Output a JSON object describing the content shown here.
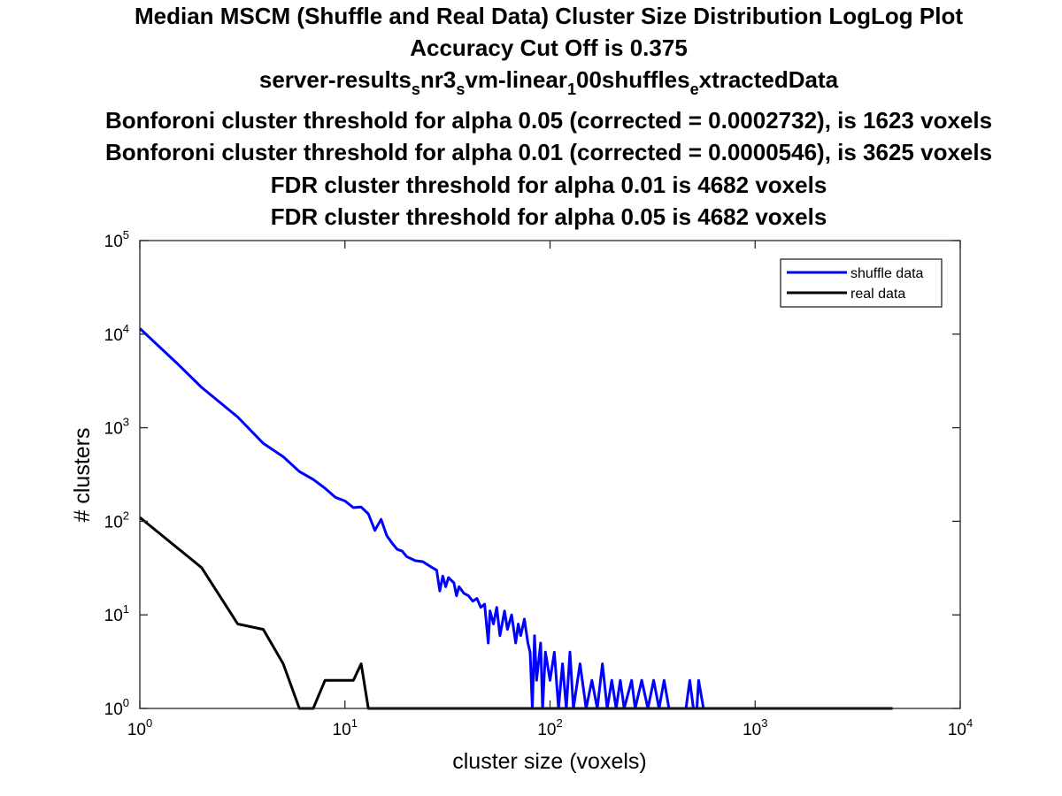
{
  "chart_data": {
    "type": "line",
    "title_lines": [
      "Median MSCM (Shuffle and Real Data) Cluster Size Distribution LogLog Plot",
      "Accuracy Cut Off is 0.375",
      "Bonforoni cluster threshold for alpha 0.05 (corrected = 0.0002732), is 1623 voxels",
      "Bonforoni cluster threshold for alpha 0.01 (corrected = 0.0000546), is 3625 voxels",
      "FDR cluster threshold for alpha 0.01 is 4682 voxels",
      "FDR cluster threshold for alpha 0.05 is 4682 voxels"
    ],
    "title_subscript_line": {
      "parts": [
        {
          "text": "server-results",
          "sub": false
        },
        {
          "text": "s",
          "sub": true
        },
        {
          "text": "nr3",
          "sub": false
        },
        {
          "text": "s",
          "sub": true
        },
        {
          "text": "vm-linear",
          "sub": false
        },
        {
          "text": "1",
          "sub": true
        },
        {
          "text": "00shuffles",
          "sub": false
        },
        {
          "text": "e",
          "sub": true
        },
        {
          "text": "xtractedData",
          "sub": false
        }
      ]
    },
    "xlabel": "cluster size (voxels)",
    "ylabel": "# clusters",
    "xscale": "log",
    "yscale": "log",
    "xlim": [
      1,
      10000
    ],
    "ylim": [
      1,
      100000
    ],
    "x_ticks": [
      {
        "base": "10",
        "exp": "0",
        "value": 1
      },
      {
        "base": "10",
        "exp": "1",
        "value": 10
      },
      {
        "base": "10",
        "exp": "2",
        "value": 100
      },
      {
        "base": "10",
        "exp": "3",
        "value": 1000
      },
      {
        "base": "10",
        "exp": "4",
        "value": 10000
      }
    ],
    "y_ticks": [
      {
        "base": "10",
        "exp": "0",
        "value": 1
      },
      {
        "base": "10",
        "exp": "1",
        "value": 10
      },
      {
        "base": "10",
        "exp": "2",
        "value": 100
      },
      {
        "base": "10",
        "exp": "3",
        "value": 1000
      },
      {
        "base": "10",
        "exp": "4",
        "value": 10000
      },
      {
        "base": "10",
        "exp": "5",
        "value": 100000
      }
    ],
    "grid": false,
    "legend_position": "top-right",
    "series": [
      {
        "name": "shuffle data",
        "color": "#0000ff",
        "points": [
          [
            1,
            11500
          ],
          [
            1.5,
            5000
          ],
          [
            2,
            2700
          ],
          [
            3,
            1300
          ],
          [
            4,
            680
          ],
          [
            5,
            490
          ],
          [
            6,
            340
          ],
          [
            7,
            280
          ],
          [
            8,
            225
          ],
          [
            9,
            180
          ],
          [
            10,
            165
          ],
          [
            11,
            140
          ],
          [
            12,
            142
          ],
          [
            13,
            120
          ],
          [
            14,
            80
          ],
          [
            15,
            105
          ],
          [
            16,
            70
          ],
          [
            17,
            58
          ],
          [
            18,
            50
          ],
          [
            19,
            48
          ],
          [
            20,
            42
          ],
          [
            22,
            38
          ],
          [
            24,
            37
          ],
          [
            26,
            33
          ],
          [
            28,
            30
          ],
          [
            29,
            18
          ],
          [
            30,
            26
          ],
          [
            31,
            20
          ],
          [
            32,
            25
          ],
          [
            34,
            22
          ],
          [
            35,
            16
          ],
          [
            36,
            20
          ],
          [
            38,
            17
          ],
          [
            40,
            16
          ],
          [
            42,
            14
          ],
          [
            44,
            15
          ],
          [
            46,
            12
          ],
          [
            48,
            13
          ],
          [
            50,
            5
          ],
          [
            51,
            11
          ],
          [
            53,
            8
          ],
          [
            55,
            12
          ],
          [
            57,
            6
          ],
          [
            60,
            11
          ],
          [
            62,
            7
          ],
          [
            65,
            10
          ],
          [
            68,
            5
          ],
          [
            70,
            8
          ],
          [
            72,
            6
          ],
          [
            75,
            9
          ],
          [
            78,
            5
          ],
          [
            80,
            4
          ],
          [
            82,
            1
          ],
          [
            84,
            6
          ],
          [
            86,
            2
          ],
          [
            90,
            5
          ],
          [
            92,
            1
          ],
          [
            95,
            4
          ],
          [
            100,
            2
          ],
          [
            105,
            4
          ],
          [
            110,
            1
          ],
          [
            115,
            3
          ],
          [
            120,
            1
          ],
          [
            125,
            4
          ],
          [
            130,
            1
          ],
          [
            140,
            3
          ],
          [
            150,
            1
          ],
          [
            160,
            2
          ],
          [
            170,
            1
          ],
          [
            180,
            3
          ],
          [
            190,
            1
          ],
          [
            200,
            2
          ],
          [
            210,
            1
          ],
          [
            220,
            2
          ],
          [
            230,
            1
          ],
          [
            250,
            2
          ],
          [
            260,
            1
          ],
          [
            280,
            2
          ],
          [
            300,
            1
          ],
          [
            320,
            2
          ],
          [
            340,
            1
          ],
          [
            360,
            2
          ],
          [
            380,
            1
          ],
          [
            400,
            1
          ],
          [
            430,
            1
          ],
          [
            460,
            1
          ],
          [
            480,
            2
          ],
          [
            500,
            1
          ],
          [
            520,
            1
          ],
          [
            530,
            2
          ],
          [
            560,
            1
          ]
        ]
      },
      {
        "name": "real data",
        "color": "#000000",
        "points": [
          [
            1,
            110
          ],
          [
            2,
            32
          ],
          [
            3,
            8
          ],
          [
            4,
            7
          ],
          [
            5,
            3
          ],
          [
            6,
            1
          ],
          [
            7,
            1
          ],
          [
            8,
            2
          ],
          [
            9,
            2
          ],
          [
            10,
            2
          ],
          [
            11,
            2
          ],
          [
            12,
            3
          ],
          [
            13,
            1
          ],
          [
            100,
            1
          ],
          [
            1000,
            1
          ],
          [
            4682,
            1
          ]
        ]
      }
    ]
  }
}
